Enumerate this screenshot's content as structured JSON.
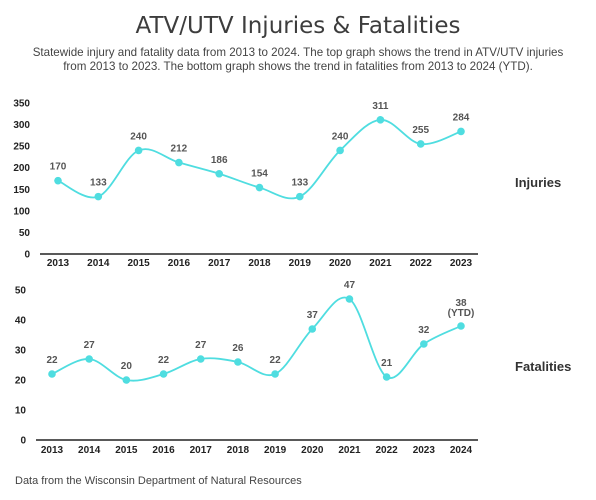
{
  "title": "ATV/UTV Injuries & Fatalities",
  "subtitle": "Statewide injury and fatality data from 2013 to 2024. The top graph shows the trend in ATV/UTV injuries from 2013 to 2023. The bottom graph shows the trend in fatalities from 2013 to 2024 (YTD).",
  "source": "Data from the Wisconsin Department of Natural Resources",
  "colors": {
    "line": "#4fdde0",
    "marker": "#4fdde0",
    "axis": "#222222"
  },
  "chart_data": [
    {
      "type": "line",
      "side_label": "Injuries",
      "categories": [
        "2013",
        "2014",
        "2015",
        "2016",
        "2017",
        "2018",
        "2019",
        "2020",
        "2021",
        "2022",
        "2023"
      ],
      "values": [
        170,
        133,
        240,
        212,
        186,
        154,
        133,
        240,
        311,
        255,
        284
      ],
      "data_labels": [
        "170",
        "133",
        "240",
        "212",
        "186",
        "154",
        "133",
        "240",
        "311",
        "255",
        "284"
      ],
      "ylim": [
        0,
        350
      ],
      "yticks": [
        "0",
        "50",
        "100",
        "150",
        "200",
        "250",
        "300",
        "350"
      ],
      "smooth": true,
      "grid": false
    },
    {
      "type": "line",
      "side_label": "Fatalities",
      "categories": [
        "2013",
        "2014",
        "2015",
        "2016",
        "2017",
        "2018",
        "2019",
        "2020",
        "2021",
        "2022",
        "2023",
        "2024"
      ],
      "values": [
        22,
        27,
        20,
        22,
        27,
        26,
        22,
        37,
        47,
        21,
        32,
        38
      ],
      "data_labels": [
        "22",
        "27",
        "20",
        "22",
        "27",
        "26",
        "22",
        "37",
        "47",
        "21",
        "32",
        "38"
      ],
      "last_label_note": "(YTD)",
      "ylim": [
        0,
        50
      ],
      "yticks": [
        "0",
        "10",
        "20",
        "30",
        "40",
        "50"
      ],
      "smooth": true,
      "grid": false
    }
  ]
}
